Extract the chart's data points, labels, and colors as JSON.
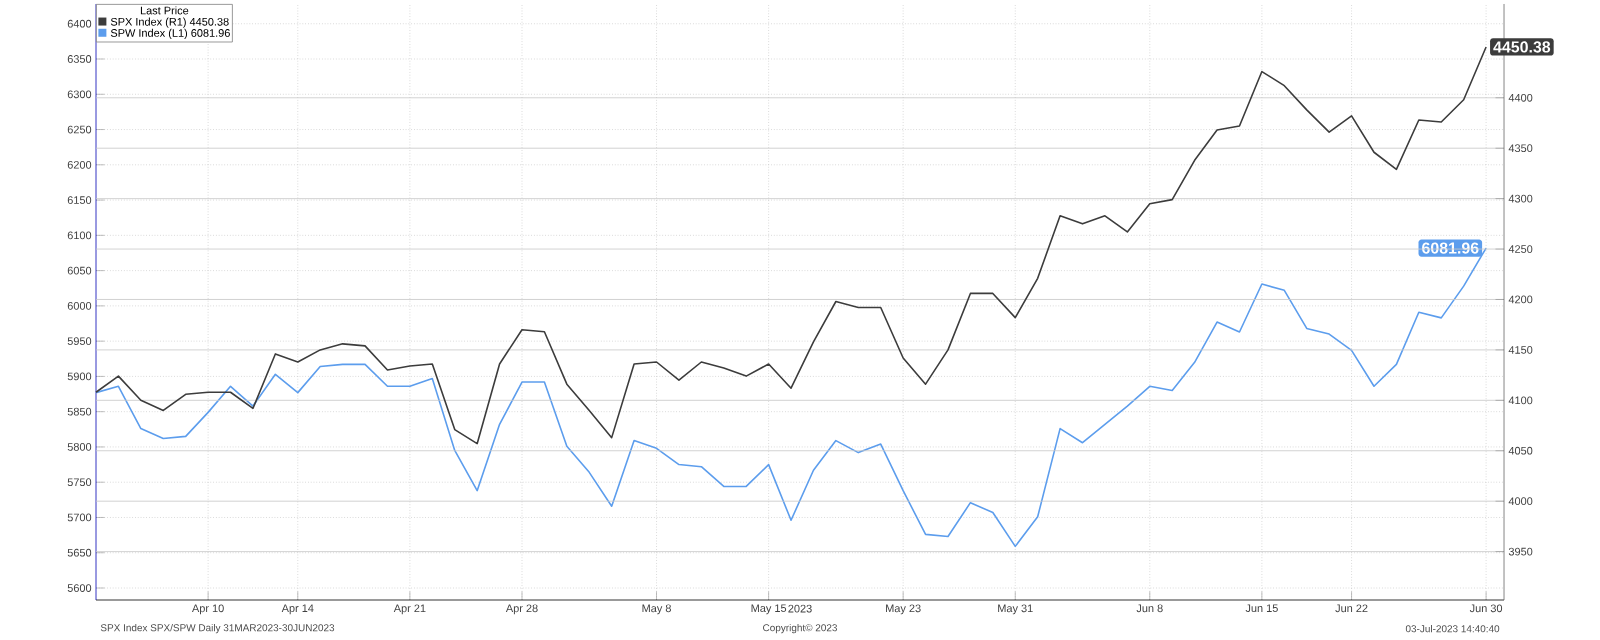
{
  "chart_data": {
    "type": "line",
    "categories": [
      null,
      null,
      null,
      null,
      null,
      "Apr 10",
      null,
      null,
      null,
      "Apr 14",
      null,
      null,
      null,
      null,
      "Apr 21",
      null,
      null,
      null,
      null,
      "Apr 28",
      null,
      null,
      null,
      null,
      null,
      "May 8",
      null,
      null,
      null,
      null,
      "May 15",
      null,
      null,
      null,
      null,
      null,
      "May 23",
      null,
      null,
      null,
      null,
      "May 31",
      null,
      null,
      null,
      null,
      null,
      "Jun 8",
      null,
      null,
      null,
      null,
      "Jun 15",
      null,
      null,
      null,
      "Jun 22",
      null,
      null,
      null,
      null,
      null,
      "Jun 30"
    ],
    "xlabel": "2023",
    "legend_title": "Last Price",
    "series": [
      {
        "name": "SPX Index (R1) 4450.38",
        "color": "#3c3c3c",
        "axis": "y2",
        "values": [
          4108,
          4124,
          4100,
          4090,
          4106,
          4108,
          4108,
          4092,
          4146,
          4138,
          4150,
          4156,
          4154,
          4130,
          4134,
          4136,
          4071,
          4057,
          4136,
          4170,
          4168,
          4116,
          4090,
          4063,
          4136,
          4138,
          4120,
          4138,
          4132,
          4124,
          4136,
          4112,
          4158,
          4198,
          4192,
          4192,
          4142,
          4116,
          4150,
          4206,
          4206,
          4182,
          4221,
          4283,
          4275,
          4283,
          4267,
          4295,
          4299,
          4338,
          4368,
          4372,
          4426,
          4412,
          4388,
          4366,
          4382,
          4346,
          4329,
          4378,
          4376,
          4398,
          4450.38
        ],
        "value_labels": [
          null,
          null,
          null,
          null,
          null,
          null,
          null,
          null,
          null,
          null,
          null,
          null,
          null,
          null,
          null,
          null,
          null,
          null,
          null,
          null,
          null,
          null,
          null,
          null,
          null,
          null,
          null,
          null,
          null,
          null,
          null,
          null,
          null,
          null,
          null,
          null,
          null,
          null,
          null,
          null,
          null,
          null,
          null,
          null,
          null,
          null,
          null,
          null,
          null,
          null,
          null,
          null,
          null,
          null,
          null,
          null,
          null,
          null,
          null,
          null,
          null,
          null,
          "4450.38"
        ]
      },
      {
        "name": "SPW Index (L1) 6081.96",
        "color": "#5c9ded",
        "axis": "y",
        "values": [
          5877,
          5886,
          5826,
          5812,
          5815,
          5849,
          5886,
          5858,
          5903,
          5877,
          5914,
          5917,
          5917,
          5886,
          5886,
          5897,
          5795,
          5738,
          5832,
          5892,
          5892,
          5801,
          5764,
          5716,
          5809,
          5798,
          5775,
          5772,
          5744,
          5744,
          5775,
          5696,
          5767,
          5809,
          5792,
          5804,
          5738,
          5676,
          5673,
          5721,
          5707,
          5659,
          5701,
          5826,
          5806,
          5832,
          5858,
          5886,
          5880,
          5920,
          5977,
          5963,
          6031,
          6022,
          5968,
          5960,
          5937,
          5886,
          5917,
          5991,
          5983,
          6028,
          6081.96
        ],
        "value_labels": [
          null,
          null,
          null,
          null,
          null,
          null,
          null,
          null,
          null,
          null,
          null,
          null,
          null,
          null,
          null,
          null,
          null,
          null,
          null,
          null,
          null,
          null,
          null,
          null,
          null,
          null,
          null,
          null,
          null,
          null,
          null,
          null,
          null,
          null,
          null,
          null,
          null,
          null,
          null,
          null,
          null,
          null,
          null,
          null,
          null,
          null,
          null,
          null,
          null,
          null,
          null,
          null,
          null,
          null,
          null,
          null,
          null,
          null,
          null,
          null,
          null,
          null,
          "6081.96"
        ]
      }
    ],
    "ylim": [
      5583,
      6428
    ],
    "yticks": [
      5600,
      5650,
      5700,
      5750,
      5800,
      5850,
      5900,
      5950,
      6000,
      6050,
      6100,
      6150,
      6200,
      6250,
      6300,
      6350,
      6400
    ],
    "y2lim": [
      3902,
      4493
    ],
    "y2ticks": [
      3950,
      4000,
      4050,
      4100,
      4150,
      4200,
      4250,
      4300,
      4350,
      4400
    ],
    "grid": true,
    "legend": "top left",
    "annotations": [
      "SPX Index SPX/SPW  Daily 31MAR2023-30JUN2023",
      "Copyright© 2023",
      "03-Jul-2023 14:40:40"
    ]
  }
}
